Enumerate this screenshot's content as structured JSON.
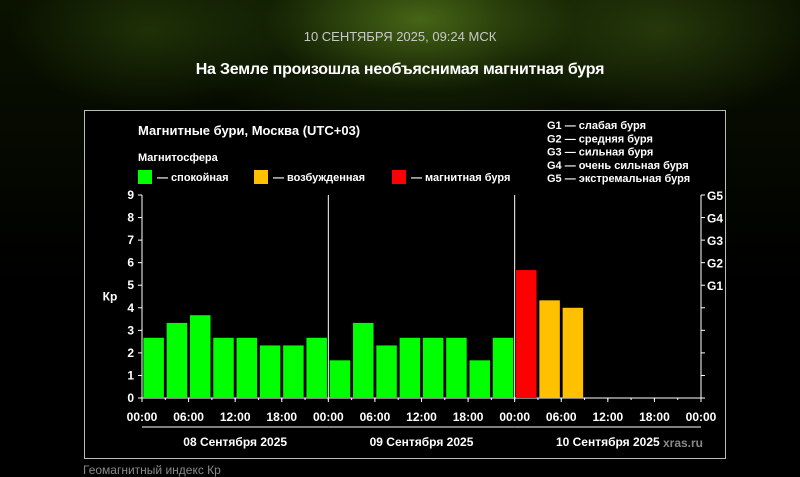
{
  "page": {
    "date_line": "10 СЕНТЯБРЯ 2025, 09:24 МСК",
    "headline": "На Земле произошла необъяснимая магнитная буря",
    "caption": "Геомагнитный индекс Кр"
  },
  "chart_data": {
    "type": "bar",
    "title": "Магнитные бури, Москва (UTC+03)",
    "legend_title": "Магнитосфера",
    "legend": [
      {
        "label": "— спокойная",
        "color": "#00ff00"
      },
      {
        "label": "— возбужденная",
        "color": "#ffc000"
      },
      {
        "label": "— магнитная буря",
        "color": "#ff0000"
      }
    ],
    "storm_scale": [
      "G1 — слабая буря",
      "G2 — средняя буря",
      "G3 — сильная буря",
      "G4 — очень сильная буря",
      "G5 — экстремальная буря"
    ],
    "ylabel": "Кр",
    "ylim": [
      0,
      9
    ],
    "yticks": [
      "0",
      "1",
      "2",
      "3",
      "4",
      "5",
      "6",
      "7",
      "8",
      "9"
    ],
    "right_ticks": [
      {
        "label": "G1",
        "kp": 5
      },
      {
        "label": "G2",
        "kp": 6
      },
      {
        "label": "G3",
        "kp": 7
      },
      {
        "label": "G4",
        "kp": 8
      },
      {
        "label": "G5",
        "kp": 9
      }
    ],
    "xticks": [
      "00:00",
      "06:00",
      "12:00",
      "18:00",
      "00:00",
      "06:00",
      "12:00",
      "18:00",
      "00:00",
      "06:00",
      "12:00",
      "18:00",
      "00:00"
    ],
    "days": [
      "08 Сентября 2025",
      "09 Сентября 2025",
      "10 Сентября 2025"
    ],
    "interval_hours": 3,
    "values": [
      2.67,
      3.33,
      3.67,
      2.67,
      2.67,
      2.33,
      2.33,
      2.67,
      1.67,
      3.33,
      2.33,
      2.67,
      2.67,
      2.67,
      1.67,
      2.67,
      5.67,
      4.33,
      4.0
    ],
    "colors": {
      "quiet": "#00ff00",
      "active": "#ffc000",
      "storm": "#ff0000"
    },
    "grid": false,
    "watermark": "xras.ru"
  }
}
